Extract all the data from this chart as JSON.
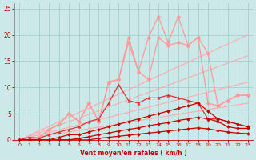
{
  "bg_color": "#cce8e8",
  "grid_color": "#99cccc",
  "xlabel": "Vent moyen/en rafales ( km/h )",
  "xlabel_color": "#cc0000",
  "tick_color": "#cc0000",
  "xlim": [
    -0.5,
    23.5
  ],
  "ylim": [
    0,
    26
  ],
  "yticks": [
    0,
    5,
    10,
    15,
    20,
    25
  ],
  "xticks": [
    0,
    1,
    2,
    3,
    4,
    5,
    6,
    7,
    8,
    9,
    10,
    11,
    12,
    13,
    14,
    15,
    16,
    17,
    18,
    19,
    20,
    21,
    22,
    23
  ],
  "series": [
    {
      "x": [
        0,
        23
      ],
      "y": [
        0,
        20
      ],
      "color": "#ffaaaa",
      "linewidth": 0.8,
      "marker": "None",
      "markersize": 0
    },
    {
      "x": [
        0,
        23
      ],
      "y": [
        0,
        16
      ],
      "color": "#ffaaaa",
      "linewidth": 0.8,
      "marker": "None",
      "markersize": 0
    },
    {
      "x": [
        0,
        23
      ],
      "y": [
        0,
        11
      ],
      "color": "#ffaaaa",
      "linewidth": 0.8,
      "marker": "None",
      "markersize": 0
    },
    {
      "x": [
        0,
        23
      ],
      "y": [
        0,
        7
      ],
      "color": "#ffaaaa",
      "linewidth": 0.8,
      "marker": "None",
      "markersize": 0
    },
    {
      "x": [
        0,
        1,
        2,
        3,
        4,
        5,
        6,
        7,
        8,
        9,
        10,
        11,
        12,
        13,
        14,
        15,
        16,
        17,
        18,
        19,
        20,
        21,
        22,
        23
      ],
      "y": [
        0,
        0,
        0.5,
        2,
        3,
        5,
        3.5,
        7,
        3.5,
        11,
        11.5,
        18.5,
        13,
        19.5,
        23.5,
        18.5,
        23.5,
        18,
        19.5,
        7,
        6.5,
        7.5,
        8.5,
        8.5
      ],
      "color": "#ff9999",
      "linewidth": 0.9,
      "marker": "D",
      "markersize": 2.5
    },
    {
      "x": [
        0,
        1,
        2,
        3,
        4,
        5,
        6,
        7,
        8,
        9,
        10,
        11,
        12,
        13,
        14,
        15,
        16,
        17,
        18,
        19,
        20,
        21,
        22,
        23
      ],
      "y": [
        0,
        0,
        0.5,
        2,
        3,
        5,
        3.5,
        7,
        3.5,
        11,
        11.5,
        19.5,
        13,
        11.5,
        19.5,
        18,
        18.5,
        18,
        19.5,
        16.5,
        6.5,
        7.5,
        8.5,
        8.5
      ],
      "color": "#ff9999",
      "linewidth": 0.9,
      "marker": "D",
      "markersize": 2.5
    },
    {
      "x": [
        0,
        1,
        2,
        3,
        4,
        5,
        6,
        7,
        8,
        9,
        10,
        11,
        12,
        13,
        14,
        15,
        16,
        17,
        18,
        19,
        20,
        21,
        22,
        23
      ],
      "y": [
        0,
        0.5,
        0.3,
        1.0,
        1.5,
        2.0,
        2.5,
        3.5,
        4.0,
        7.0,
        10.5,
        7.5,
        7.0,
        8.0,
        8.0,
        8.5,
        8.0,
        7.5,
        7.0,
        4.0,
        4.0,
        3.5,
        3.0,
        2.5
      ],
      "color": "#dd3333",
      "linewidth": 0.9,
      "marker": "^",
      "markersize": 2.5
    },
    {
      "x": [
        0,
        1,
        2,
        3,
        4,
        5,
        6,
        7,
        8,
        9,
        10,
        11,
        12,
        13,
        14,
        15,
        16,
        17,
        18,
        19,
        20,
        21,
        22,
        23
      ],
      "y": [
        0,
        0,
        0,
        0,
        0.5,
        1.0,
        1.0,
        1.5,
        2.0,
        2.5,
        3.0,
        3.5,
        4.0,
        4.5,
        5.0,
        5.5,
        6.0,
        6.5,
        7.0,
        5.5,
        4.0,
        3.5,
        3.0,
        2.5
      ],
      "color": "#cc0000",
      "linewidth": 0.9,
      "marker": "D",
      "markersize": 2
    },
    {
      "x": [
        0,
        1,
        2,
        3,
        4,
        5,
        6,
        7,
        8,
        9,
        10,
        11,
        12,
        13,
        14,
        15,
        16,
        17,
        18,
        19,
        20,
        21,
        22,
        23
      ],
      "y": [
        0,
        0,
        0,
        0,
        0,
        0,
        0.3,
        0.6,
        1.0,
        1.3,
        1.7,
        2.0,
        2.3,
        2.7,
        3.0,
        3.3,
        3.7,
        4.0,
        4.3,
        4.0,
        3.5,
        2.5,
        2.2,
        2.2
      ],
      "color": "#cc0000",
      "linewidth": 0.9,
      "marker": "D",
      "markersize": 2
    },
    {
      "x": [
        0,
        1,
        2,
        3,
        4,
        5,
        6,
        7,
        8,
        9,
        10,
        11,
        12,
        13,
        14,
        15,
        16,
        17,
        18,
        19,
        20,
        21,
        22,
        23
      ],
      "y": [
        0,
        0,
        0,
        0,
        0,
        0,
        0,
        0,
        0.3,
        0.5,
        0.7,
        0.9,
        1.1,
        1.3,
        1.5,
        1.7,
        1.9,
        2.1,
        2.3,
        2.1,
        1.8,
        1.5,
        1.3,
        1.2
      ],
      "color": "#cc0000",
      "linewidth": 0.9,
      "marker": "D",
      "markersize": 2
    },
    {
      "x": [
        0,
        23
      ],
      "y": [
        0,
        0
      ],
      "color": "#cc0000",
      "linewidth": 0.7,
      "marker": "None",
      "markersize": 0
    }
  ]
}
